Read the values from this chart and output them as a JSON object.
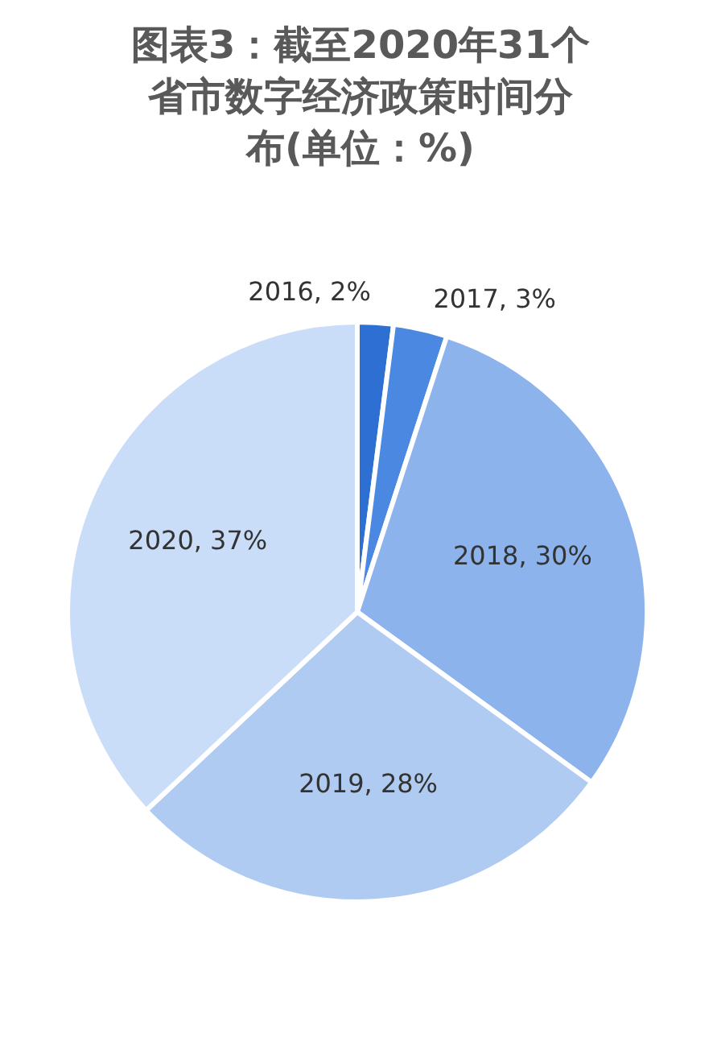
{
  "chart_data": {
    "type": "pie",
    "title": "图表3：截至2020年31个省市数字经济政策时间分布(单位：%)",
    "categories": [
      "2016",
      "2017",
      "2018",
      "2019",
      "2020"
    ],
    "values": [
      2,
      3,
      30,
      28,
      37
    ],
    "colors": [
      "#2e6fd3",
      "#4a88e2",
      "#8db3ec",
      "#b0cbf2",
      "#c9dcf8"
    ],
    "value_labels": [
      ", 2%",
      ", 3%",
      ", 30%",
      ", 28%",
      ", 37%"
    ]
  }
}
